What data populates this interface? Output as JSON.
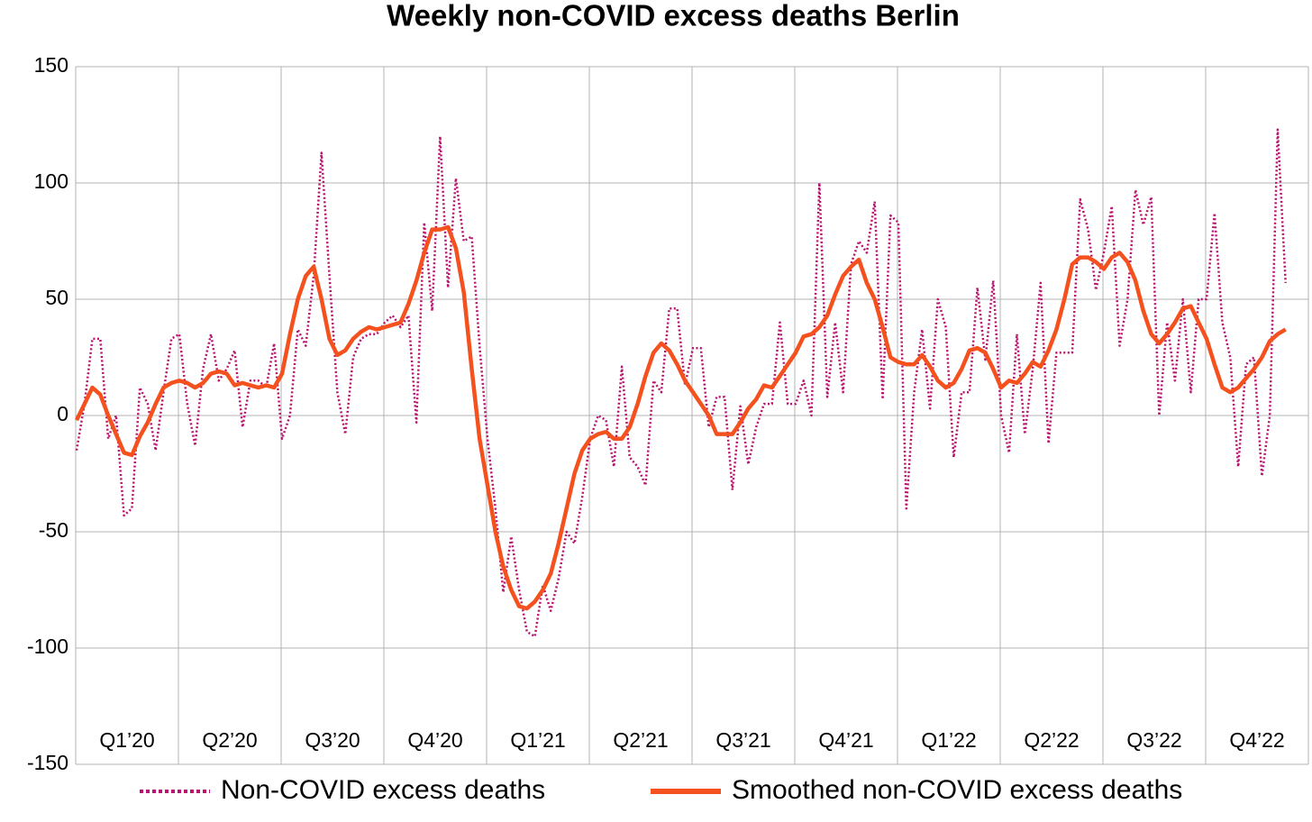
{
  "chart_data": {
    "type": "line",
    "title": "Weekly non-COVID excess deaths Berlin",
    "categories": [
      null,
      null,
      null,
      null,
      null,
      null,
      "Q1’20",
      null,
      null,
      null,
      null,
      null,
      null,
      null,
      null,
      null,
      null,
      null,
      null,
      "Q2’20",
      null,
      null,
      null,
      null,
      null,
      null,
      null,
      null,
      null,
      null,
      null,
      null,
      "Q3’20",
      null,
      null,
      null,
      null,
      null,
      null,
      null,
      null,
      null,
      null,
      null,
      null,
      "Q4’20",
      null,
      null,
      null,
      null,
      null,
      null,
      null,
      null,
      null,
      null,
      null,
      null,
      "Q1’21",
      null,
      null,
      null,
      null,
      null,
      null,
      null,
      null,
      null,
      null,
      null,
      null,
      "Q2’21",
      null,
      null,
      null,
      null,
      null,
      null,
      null,
      null,
      null,
      null,
      null,
      null,
      "Q3’21",
      null,
      null,
      null,
      null,
      null,
      null,
      null,
      null,
      null,
      null,
      null,
      null,
      "Q4’21",
      null,
      null,
      null,
      null,
      null,
      null,
      null,
      null,
      null,
      null,
      null,
      null,
      "Q1’22",
      null,
      null,
      null,
      null,
      null,
      null,
      null,
      null,
      null,
      null,
      null,
      null,
      "Q2’22",
      null,
      null,
      null,
      null,
      null,
      null,
      null,
      null,
      null,
      null,
      null,
      null,
      "Q3’22",
      null,
      null,
      null,
      null,
      null,
      null,
      null,
      null,
      null,
      null,
      null,
      null,
      "Q4’22",
      null,
      null,
      null,
      null
    ],
    "series": [
      {
        "name": "Non-COVID excess deaths",
        "color": "#b8116e",
        "style": "dotted",
        "values": [
          -15,
          5,
          33,
          33,
          -10,
          0,
          -43,
          -40,
          12,
          5,
          -15,
          10,
          33,
          35,
          5,
          -13,
          20,
          35,
          15,
          20,
          28,
          -5,
          15,
          15,
          12,
          31,
          -10,
          0,
          37,
          30,
          60,
          113,
          60,
          10,
          -8,
          25,
          33,
          35,
          35,
          40,
          43,
          38,
          43,
          -3,
          83,
          45,
          120,
          55,
          102,
          75,
          77,
          30,
          -10,
          -40,
          -76,
          -52,
          -75,
          -93,
          -95,
          -73,
          -84,
          -70,
          -50,
          -55,
          -35,
          -10,
          0,
          -2,
          -22,
          21,
          -18,
          -22,
          -30,
          15,
          10,
          46,
          46,
          13,
          29,
          29,
          -5,
          8,
          8,
          -32,
          4,
          -21,
          -5,
          5,
          5,
          40,
          5,
          5,
          15,
          0,
          100,
          8,
          40,
          10,
          65,
          75,
          70,
          92,
          7,
          86,
          83,
          -40,
          10,
          37,
          3,
          50,
          38,
          -18,
          10,
          10,
          55,
          24,
          58,
          0,
          -16,
          35,
          -8,
          20,
          57,
          -12,
          27,
          27,
          27,
          93,
          80,
          54,
          70,
          90,
          30,
          50,
          97,
          82,
          94,
          0,
          40,
          15,
          50,
          10,
          50,
          50,
          87,
          40,
          25,
          -22,
          22,
          25,
          -26,
          0,
          123,
          57
        ]
      },
      {
        "name": "Smoothed non-COVID excess deaths",
        "color": "#f4511e",
        "style": "solid",
        "values": [
          -2,
          5,
          12,
          9,
          0,
          -8,
          -16,
          -17,
          -9,
          -3,
          5,
          12,
          14,
          15,
          14,
          12,
          14,
          18,
          19,
          18,
          13,
          14,
          13,
          12,
          13,
          12,
          18,
          35,
          50,
          60,
          64,
          50,
          33,
          26,
          28,
          33,
          36,
          38,
          37,
          38,
          39,
          40,
          48,
          58,
          70,
          80,
          80,
          81,
          72,
          53,
          20,
          -10,
          -30,
          -50,
          -65,
          -75,
          -82,
          -83,
          -80,
          -75,
          -68,
          -55,
          -40,
          -25,
          -15,
          -10,
          -8,
          -7,
          -10,
          -10,
          -5,
          5,
          17,
          27,
          31,
          28,
          22,
          15,
          10,
          5,
          0,
          -8,
          -8,
          -8,
          -3,
          3,
          7,
          13,
          12,
          17,
          22,
          27,
          34,
          35,
          38,
          43,
          52,
          60,
          64,
          67,
          57,
          50,
          38,
          25,
          23,
          22,
          22,
          26,
          21,
          15,
          12,
          14,
          20,
          28,
          29,
          27,
          20,
          12,
          15,
          14,
          18,
          23,
          21,
          28,
          37,
          50,
          65,
          68,
          68,
          66,
          63,
          68,
          70,
          66,
          58,
          45,
          35,
          31,
          35,
          40,
          46,
          47,
          40,
          33,
          22,
          12,
          10,
          12,
          16,
          20,
          25,
          32,
          35,
          37
        ]
      }
    ],
    "ylim": [
      -150,
      150
    ],
    "yticks": [
      -150,
      -100,
      -50,
      0,
      50,
      100,
      150
    ],
    "grid": true,
    "legend": "bottom"
  }
}
